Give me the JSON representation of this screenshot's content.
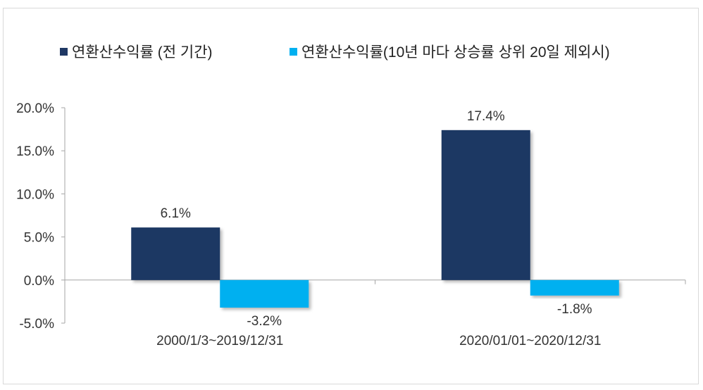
{
  "chart_data": {
    "type": "bar",
    "categories": [
      "2000/1/3~2019/12/31",
      "2020/01/01~2020/12/31"
    ],
    "series": [
      {
        "name": "연환산수익률 (전 기간)",
        "values": [
          6.1,
          17.4
        ],
        "labels": [
          "6.1%",
          "17.4%"
        ],
        "color": "#1f3864"
      },
      {
        "name": "연환산수익률(10년 마다 상승률 상위 20일 제외시)",
        "values": [
          -3.2,
          -1.8
        ],
        "labels": [
          "-3.2%",
          "-1.8%"
        ],
        "color": "#00b0f0"
      }
    ],
    "ylim": [
      -5,
      20
    ],
    "yticks": [
      20,
      15,
      10,
      5,
      0,
      -5
    ],
    "ytick_labels": [
      "20.0%",
      "15.0%",
      "10.0%",
      "5.0%",
      "0.0%",
      "-5.0%"
    ],
    "legend_position": "top-left",
    "grid": false
  }
}
